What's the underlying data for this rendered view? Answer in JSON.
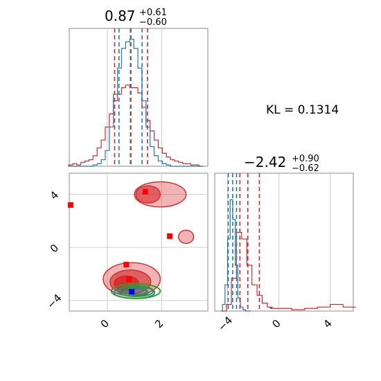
{
  "chart_data": [
    {
      "type": "histogram",
      "panel": "top-left",
      "title": {
        "value": "0.87",
        "plus": "+0.61",
        "minus": "−0.60"
      },
      "xlim": [
        -1.4,
        3.7
      ],
      "colors": {
        "red": "#d62728",
        "blue": "#1f77b4"
      },
      "bins": [
        -1.35,
        -1.2,
        -1.05,
        -0.9,
        -0.75,
        -0.6,
        -0.45,
        -0.3,
        -0.15,
        0.0,
        0.15,
        0.3,
        0.45,
        0.6,
        0.75,
        0.9,
        1.05,
        1.2,
        1.35,
        1.5,
        1.65,
        1.8,
        1.95,
        2.1,
        2.25,
        2.4,
        2.55,
        2.7,
        2.85,
        3.0,
        3.15,
        3.3,
        3.45,
        3.6
      ],
      "series": [
        {
          "color": "red",
          "values": [
            0.01,
            0.02,
            0.01,
            0.03,
            0.04,
            0.05,
            0.08,
            0.14,
            0.2,
            0.3,
            0.4,
            0.5,
            0.55,
            0.6,
            0.62,
            0.6,
            0.6,
            0.56,
            0.45,
            0.35,
            0.27,
            0.2,
            0.14,
            0.1,
            0.07,
            0.05,
            0.04,
            0.03,
            0.02,
            0.02,
            0.01,
            0.01,
            0.0
          ]
        },
        {
          "color": "blue",
          "values": [
            0.0,
            0.0,
            0.0,
            0.0,
            0.0,
            0.0,
            0.01,
            0.02,
            0.05,
            0.12,
            0.3,
            0.55,
            0.75,
            0.9,
            0.95,
            0.97,
            0.9,
            0.75,
            0.5,
            0.3,
            0.15,
            0.08,
            0.04,
            0.02,
            0.01,
            0.0,
            0.0,
            0.0,
            0.0,
            0.0,
            0.0,
            0.0,
            0.0
          ]
        }
      ],
      "quantile_lines": [
        {
          "color": "red",
          "x": [
            0.27,
            0.87,
            1.48
          ]
        },
        {
          "color": "blue",
          "x": [
            0.43,
            0.85,
            1.28
          ]
        }
      ]
    },
    {
      "type": "histogram",
      "panel": "bottom-right",
      "title": {
        "value": "−2.42",
        "plus": "+0.90",
        "minus": "−0.62"
      },
      "xlim": [
        -5.0,
        5.8
      ],
      "xticks": [
        -4,
        0,
        4
      ],
      "xtick_labels": [
        "−4",
        "0",
        "4"
      ],
      "series": [
        {
          "color": "blue",
          "x": [
            -4.3,
            -4.1,
            -3.9,
            -3.7,
            -3.5,
            -3.3,
            -3.1,
            -2.9,
            -2.7,
            -2.5,
            -2.3
          ],
          "values": [
            0.05,
            0.2,
            0.55,
            0.85,
            0.7,
            0.35,
            0.1,
            0.03,
            0.01,
            0.0,
            0.0
          ]
        },
        {
          "color": "red",
          "x": [
            -4.3,
            -3.9,
            -3.5,
            -3.1,
            -2.7,
            -2.3,
            -1.9,
            -1.5,
            -1.1,
            -0.7,
            -0.3,
            0.5,
            1.5,
            2.5,
            3.5,
            4.5,
            5.5
          ],
          "values": [
            0.0,
            0.05,
            0.25,
            0.6,
            0.55,
            0.35,
            0.2,
            0.12,
            0.06,
            0.03,
            0.02,
            0.02,
            0.01,
            0.02,
            0.03,
            0.05,
            0.03
          ]
        }
      ],
      "quantile_lines": [
        {
          "color": "red",
          "x": [
            -3.04,
            -2.42,
            -1.52
          ]
        },
        {
          "color": "blue",
          "x": [
            -3.95,
            -3.6,
            -3.3
          ]
        }
      ]
    },
    {
      "type": "contour",
      "panel": "bottom-left",
      "xlim": [
        -1.4,
        3.7
      ],
      "ylim": [
        -4.8,
        5.6
      ],
      "xticks": [
        0,
        2
      ],
      "xtick_labels": [
        "0",
        "2"
      ],
      "yticks": [
        -4,
        0,
        4
      ],
      "ytick_labels": [
        "−4",
        "0",
        "4"
      ],
      "red_contours": [
        {
          "cx": 0.9,
          "cy": -2.4,
          "rx": 1.05,
          "ry": 1.25,
          "level": 0.35
        },
        {
          "cx": 0.85,
          "cy": -2.6,
          "rx": 0.75,
          "ry": 0.9,
          "level": 0.6
        },
        {
          "cx": 0.7,
          "cy": -2.7,
          "rx": 0.45,
          "ry": 0.55,
          "level": 0.85
        },
        {
          "cx": 1.95,
          "cy": 4.0,
          "rx": 0.95,
          "ry": 0.95,
          "level": 0.35
        },
        {
          "cx": 1.5,
          "cy": 4.0,
          "rx": 0.45,
          "ry": 0.65,
          "level": 0.6
        },
        {
          "cx": 2.9,
          "cy": 0.8,
          "rx": 0.28,
          "ry": 0.5,
          "level": 0.35
        }
      ],
      "green_contours": [
        {
          "cx": 1.05,
          "cy": -3.3,
          "rx": 0.9,
          "ry": 0.55
        },
        {
          "cx": 1.05,
          "cy": -3.3,
          "rx": 0.65,
          "ry": 0.4
        },
        {
          "cx": 1.05,
          "cy": -3.3,
          "rx": 0.4,
          "ry": 0.25
        }
      ],
      "blue_contours": [
        {
          "cx": 1.0,
          "cy": -3.4,
          "rx": 0.75,
          "ry": 0.45
        },
        {
          "cx": 1.0,
          "cy": -3.4,
          "rx": 0.5,
          "ry": 0.3
        }
      ],
      "red_markers": [
        {
          "x": 1.4,
          "y": 4.2
        },
        {
          "x": -1.35,
          "y": 3.2
        },
        {
          "x": 2.3,
          "y": 0.85
        },
        {
          "x": 0.7,
          "y": -1.3
        },
        {
          "x": 0.8,
          "y": -2.4
        }
      ],
      "blue_markers": [
        {
          "x": 0.9,
          "y": -3.35
        }
      ]
    }
  ],
  "annotation": {
    "kl_text": "KL = 0.1314"
  }
}
